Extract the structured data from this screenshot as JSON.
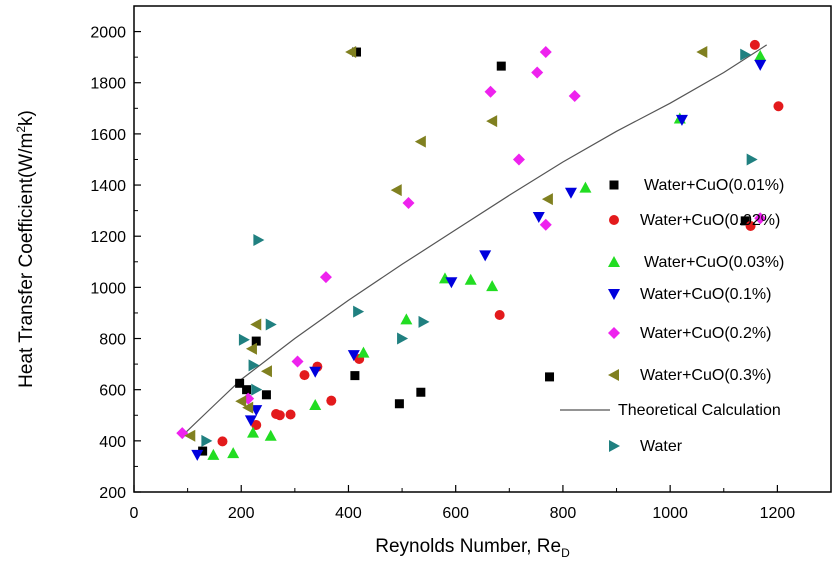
{
  "chart_data": {
    "type": "scatter",
    "title": "",
    "xlabel_main": "Reynolds Number, Re",
    "xlabel_sub": "D",
    "ylabel_main": "Heat Transfer Coefficient(W/m",
    "ylabel_sup": "2",
    "ylabel_end": "k)",
    "xlim": [
      0,
      1300
    ],
    "ylim": [
      200,
      2100
    ],
    "x_ticks": [
      0,
      200,
      400,
      600,
      800,
      1000,
      1200
    ],
    "y_ticks": [
      200,
      400,
      600,
      800,
      1000,
      1200,
      1400,
      1600,
      1800,
      2000
    ],
    "grid": false,
    "legend_position": "right",
    "series": [
      {
        "name": "Water+CuO(0.01%)",
        "marker": "square",
        "color": "#000000",
        "points": [
          [
            128,
            360
          ],
          [
            197,
            625
          ],
          [
            210,
            600
          ],
          [
            228,
            790
          ],
          [
            247,
            580
          ],
          [
            412,
            655
          ],
          [
            415,
            1920
          ],
          [
            495,
            545
          ],
          [
            535,
            590
          ],
          [
            685,
            1865
          ],
          [
            775,
            650
          ],
          [
            1140,
            1260
          ]
        ]
      },
      {
        "name": "Water+CuO(0.02%)",
        "marker": "circle",
        "color": "#e31a1c",
        "points": [
          [
            165,
            398
          ],
          [
            228,
            462
          ],
          [
            265,
            505
          ],
          [
            272,
            500
          ],
          [
            292,
            503
          ],
          [
            318,
            657
          ],
          [
            342,
            690
          ],
          [
            368,
            557
          ],
          [
            420,
            720
          ],
          [
            682,
            892
          ],
          [
            1150,
            1240
          ],
          [
            1158,
            1948
          ],
          [
            1202,
            1708
          ]
        ]
      },
      {
        "name": "Water+CuO(0.03%)",
        "marker": "triangle-up",
        "color": "#22dd22",
        "points": [
          [
            148,
            345
          ],
          [
            185,
            352
          ],
          [
            222,
            432
          ],
          [
            255,
            420
          ],
          [
            338,
            540
          ],
          [
            428,
            745
          ],
          [
            508,
            875
          ],
          [
            580,
            1035
          ],
          [
            628,
            1030
          ],
          [
            668,
            1005
          ],
          [
            842,
            1390
          ],
          [
            1018,
            1660
          ],
          [
            1168,
            1905
          ]
        ]
      },
      {
        "name": "Water+CuO(0.1%)",
        "marker": "triangle-down",
        "color": "#0000dd",
        "points": [
          [
            118,
            345
          ],
          [
            218,
            480
          ],
          [
            228,
            520
          ],
          [
            338,
            670
          ],
          [
            410,
            735
          ],
          [
            592,
            1020
          ],
          [
            655,
            1125
          ],
          [
            755,
            1275
          ],
          [
            815,
            1370
          ],
          [
            1022,
            1655
          ],
          [
            1168,
            1870
          ]
        ]
      },
      {
        "name": "Water+CuO(0.2%)",
        "marker": "diamond",
        "color": "#ee22ee",
        "points": [
          [
            90,
            430
          ],
          [
            213,
            565
          ],
          [
            305,
            710
          ],
          [
            358,
            1040
          ],
          [
            512,
            1330
          ],
          [
            665,
            1765
          ],
          [
            718,
            1500
          ],
          [
            752,
            1840
          ],
          [
            768,
            1920
          ],
          [
            768,
            1245
          ],
          [
            822,
            1748
          ],
          [
            1168,
            1270
          ]
        ]
      },
      {
        "name": "Water+CuO(0.3%)",
        "marker": "triangle-left",
        "color": "#808020",
        "points": [
          [
            105,
            420
          ],
          [
            200,
            555
          ],
          [
            213,
            530
          ],
          [
            220,
            760
          ],
          [
            228,
            855
          ],
          [
            248,
            672
          ],
          [
            405,
            1920
          ],
          [
            490,
            1380
          ],
          [
            535,
            1570
          ],
          [
            668,
            1650
          ],
          [
            772,
            1345
          ],
          [
            1060,
            1920
          ]
        ]
      },
      {
        "name": "Water",
        "marker": "triangle-right",
        "color": "#208080",
        "points": [
          [
            135,
            400
          ],
          [
            205,
            795
          ],
          [
            223,
            695
          ],
          [
            228,
            600
          ],
          [
            232,
            1185
          ],
          [
            255,
            855
          ],
          [
            418,
            905
          ],
          [
            500,
            800
          ],
          [
            540,
            865
          ],
          [
            1140,
            1910
          ],
          [
            1152,
            1500
          ]
        ]
      }
    ],
    "theory_line": {
      "name": "Theoretical Calculation",
      "color": "#555555",
      "points": [
        [
          95,
          430
        ],
        [
          150,
          540
        ],
        [
          200,
          640
        ],
        [
          300,
          800
        ],
        [
          400,
          950
        ],
        [
          500,
          1090
        ],
        [
          600,
          1225
        ],
        [
          700,
          1360
        ],
        [
          800,
          1490
        ],
        [
          900,
          1610
        ],
        [
          1000,
          1720
        ],
        [
          1100,
          1840
        ],
        [
          1180,
          1948
        ]
      ]
    }
  }
}
